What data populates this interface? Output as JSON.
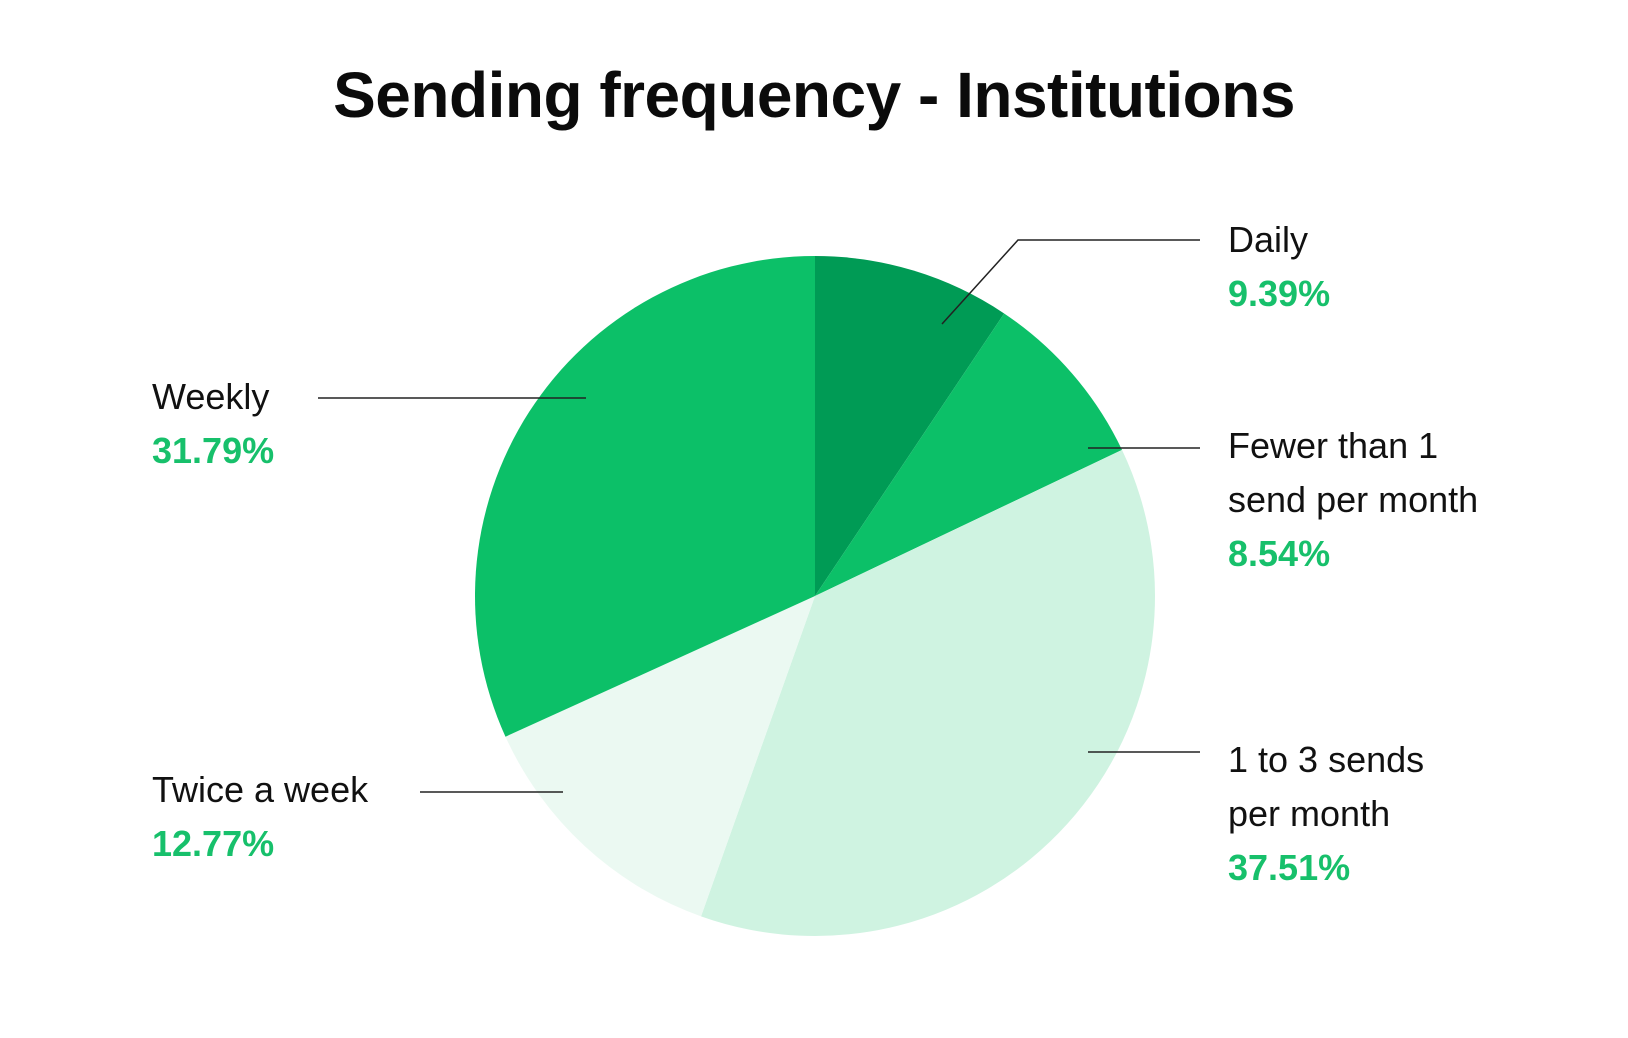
{
  "chart_data": {
    "type": "pie",
    "title": "Sending frequency - Institutions",
    "slices": [
      {
        "label_lines": [
          "Daily"
        ],
        "value": 9.39,
        "value_text": "9.39%",
        "color": "#009b55"
      },
      {
        "label_lines": [
          "Fewer than 1",
          "send per month"
        ],
        "value": 8.54,
        "value_text": "8.54%",
        "color": "#0cc068"
      },
      {
        "label_lines": [
          "1 to 3 sends",
          "per month"
        ],
        "value": 37.51,
        "value_text": "37.51%",
        "color": "#cff3e1"
      },
      {
        "label_lines": [
          "Twice a week"
        ],
        "value": 12.77,
        "value_text": "12.77%",
        "color": "#ebf9f2"
      },
      {
        "label_lines": [
          "Weekly"
        ],
        "value": 31.79,
        "value_text": "31.79%",
        "color": "#0cc068"
      }
    ],
    "start_angle": "12 o'clock",
    "direction": "clockwise",
    "percent_color": "#17c06b",
    "leader_line_color": "#222222"
  }
}
